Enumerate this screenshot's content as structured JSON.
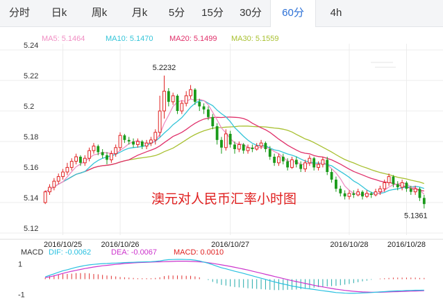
{
  "tabs": [
    {
      "label": "分时",
      "active": false
    },
    {
      "label": "日k",
      "active": false
    },
    {
      "label": "周k",
      "active": false
    },
    {
      "label": "月k",
      "active": false
    },
    {
      "label": "5分",
      "active": false
    },
    {
      "label": "15分",
      "active": false
    },
    {
      "label": "30分",
      "active": false
    },
    {
      "label": "60分",
      "active": true
    },
    {
      "label": "4h",
      "active": false
    }
  ],
  "colors": {
    "up": "#e02020",
    "down": "#1a9a1a",
    "ma5": "#f08ec3",
    "ma10": "#33c4d8",
    "ma20": "#e0306a",
    "ma30": "#a8c030",
    "dif": "#27c0e0",
    "dea": "#cc33cc",
    "macd_pos": "#e03030",
    "macd_neg": "#22aaaa",
    "overlay": "#e02020"
  },
  "legend": {
    "ma5": "MA5: 5.1464",
    "ma10": "MA10: 5.1470",
    "ma20": "MA20: 5.1499",
    "ma30": "MA30: 5.1559"
  },
  "overlay_text": "澳元对人民币汇率小时图",
  "annotations": {
    "high": "5.2232",
    "low": "5.1361"
  },
  "macd_legend": {
    "label": "MACD",
    "dif": "DIF: -0.0062",
    "dea": "DEA: -0.0067",
    "macd": "MACD: 0.0010"
  },
  "chart_data": {
    "type": "candlestick",
    "y_ticks": [
      "5.24",
      "5.22",
      "5.2",
      "5.18",
      "5.16",
      "5.14",
      "5.12"
    ],
    "ylim": [
      5.12,
      5.24
    ],
    "date_labels": [
      {
        "index": 4,
        "label": "2016/10/25"
      },
      {
        "index": 17,
        "label": "2016/10/26"
      },
      {
        "index": 42,
        "label": "2016/10/27"
      },
      {
        "index": 69,
        "label": "2016/10/28"
      },
      {
        "index": 82,
        "label": "2016/10/28"
      }
    ],
    "high_index": 27,
    "low_index": 86,
    "candles": [
      [
        5.14,
        5.147,
        5.148,
        5.139
      ],
      [
        5.147,
        5.15,
        5.152,
        5.145
      ],
      [
        5.15,
        5.154,
        5.156,
        5.148
      ],
      [
        5.154,
        5.157,
        5.159,
        5.152
      ],
      [
        5.157,
        5.16,
        5.162,
        5.155
      ],
      [
        5.16,
        5.163,
        5.166,
        5.158
      ],
      [
        5.163,
        5.167,
        5.169,
        5.161
      ],
      [
        5.167,
        5.17,
        5.172,
        5.165
      ],
      [
        5.17,
        5.166,
        5.171,
        5.164
      ],
      [
        5.166,
        5.169,
        5.171,
        5.164
      ],
      [
        5.169,
        5.174,
        5.176,
        5.167
      ],
      [
        5.174,
        5.177,
        5.179,
        5.172
      ],
      [
        5.177,
        5.173,
        5.178,
        5.171
      ],
      [
        5.173,
        5.171,
        5.175,
        5.169
      ],
      [
        5.171,
        5.168,
        5.173,
        5.165
      ],
      [
        5.168,
        5.172,
        5.174,
        5.166
      ],
      [
        5.172,
        5.176,
        5.178,
        5.17
      ],
      [
        5.176,
        5.184,
        5.186,
        5.174
      ],
      [
        5.184,
        5.181,
        5.185,
        5.179
      ],
      [
        5.181,
        5.18,
        5.183,
        5.178
      ],
      [
        5.18,
        5.178,
        5.182,
        5.176
      ],
      [
        5.178,
        5.18,
        5.182,
        5.176
      ],
      [
        5.18,
        5.177,
        5.181,
        5.175
      ],
      [
        5.177,
        5.179,
        5.181,
        5.175
      ],
      [
        5.179,
        5.181,
        5.183,
        5.177
      ],
      [
        5.181,
        5.186,
        5.188,
        5.178
      ],
      [
        5.186,
        5.2,
        5.21,
        5.183
      ],
      [
        5.2,
        5.213,
        5.2232,
        5.195
      ],
      [
        5.213,
        5.206,
        5.215,
        5.203
      ],
      [
        5.206,
        5.21,
        5.212,
        5.204
      ],
      [
        5.21,
        5.2,
        5.211,
        5.198
      ],
      [
        5.2,
        5.205,
        5.207,
        5.198
      ],
      [
        5.205,
        5.21,
        5.213,
        5.203
      ],
      [
        5.21,
        5.214,
        5.217,
        5.208
      ],
      [
        5.214,
        5.206,
        5.215,
        5.204
      ],
      [
        5.206,
        5.203,
        5.208,
        5.2
      ],
      [
        5.203,
        5.201,
        5.205,
        5.198
      ],
      [
        5.201,
        5.196,
        5.203,
        5.194
      ],
      [
        5.196,
        5.19,
        5.198,
        5.188
      ],
      [
        5.19,
        5.181,
        5.192,
        5.178
      ],
      [
        5.181,
        5.176,
        5.183,
        5.172
      ],
      [
        5.176,
        5.185,
        5.188,
        5.174
      ],
      [
        5.185,
        5.178,
        5.187,
        5.176
      ],
      [
        5.178,
        5.175,
        5.18,
        5.172
      ],
      [
        5.175,
        5.178,
        5.18,
        5.173
      ],
      [
        5.178,
        5.174,
        5.179,
        5.172
      ],
      [
        5.174,
        5.176,
        5.178,
        5.172
      ],
      [
        5.176,
        5.175,
        5.178,
        5.173
      ],
      [
        5.175,
        5.177,
        5.179,
        5.174
      ],
      [
        5.177,
        5.179,
        5.181,
        5.175
      ],
      [
        5.179,
        5.175,
        5.18,
        5.173
      ],
      [
        5.175,
        5.17,
        5.177,
        5.168
      ],
      [
        5.17,
        5.166,
        5.172,
        5.164
      ],
      [
        5.166,
        5.17,
        5.172,
        5.164
      ],
      [
        5.17,
        5.167,
        5.172,
        5.165
      ],
      [
        5.167,
        5.163,
        5.169,
        5.161
      ],
      [
        5.163,
        5.168,
        5.17,
        5.162
      ],
      [
        5.168,
        5.165,
        5.17,
        5.163
      ],
      [
        5.165,
        5.162,
        5.167,
        5.16
      ],
      [
        5.162,
        5.166,
        5.168,
        5.16
      ],
      [
        5.166,
        5.169,
        5.171,
        5.164
      ],
      [
        5.169,
        5.163,
        5.17,
        5.161
      ],
      [
        5.163,
        5.165,
        5.167,
        5.161
      ],
      [
        5.165,
        5.168,
        5.17,
        5.163
      ],
      [
        5.168,
        5.16,
        5.17,
        5.158
      ],
      [
        5.16,
        5.155,
        5.162,
        5.153
      ],
      [
        5.155,
        5.149,
        5.157,
        5.147
      ],
      [
        5.149,
        5.146,
        5.151,
        5.144
      ],
      [
        5.146,
        5.144,
        5.148,
        5.142
      ],
      [
        5.144,
        5.146,
        5.148,
        5.142
      ],
      [
        5.146,
        5.145,
        5.148,
        5.143
      ],
      [
        5.145,
        5.147,
        5.149,
        5.144
      ],
      [
        5.147,
        5.144,
        5.148,
        5.142
      ],
      [
        5.144,
        5.146,
        5.148,
        5.143
      ],
      [
        5.146,
        5.145,
        5.147,
        5.143
      ],
      [
        5.145,
        5.147,
        5.149,
        5.144
      ],
      [
        5.147,
        5.149,
        5.151,
        5.145
      ],
      [
        5.149,
        5.153,
        5.155,
        5.147
      ],
      [
        5.153,
        5.157,
        5.159,
        5.151
      ],
      [
        5.157,
        5.152,
        5.158,
        5.15
      ],
      [
        5.152,
        5.15,
        5.154,
        5.148
      ],
      [
        5.15,
        5.153,
        5.155,
        5.148
      ],
      [
        5.153,
        5.149,
        5.154,
        5.147
      ],
      [
        5.149,
        5.147,
        5.151,
        5.145
      ],
      [
        5.147,
        5.149,
        5.151,
        5.145
      ],
      [
        5.149,
        5.143,
        5.15,
        5.141
      ],
      [
        5.143,
        5.139,
        5.145,
        5.1361
      ]
    ],
    "macd": {
      "ylim": [
        -1.3,
        1.3
      ],
      "y_ticks": [
        "1",
        "-1"
      ],
      "dif": [
        0.15,
        0.25,
        0.35,
        0.45,
        0.55,
        0.62,
        0.7,
        0.78,
        0.84,
        0.9,
        0.94,
        0.97,
        1.0,
        1.02,
        1.03,
        1.05,
        1.06,
        1.07,
        1.09,
        1.1,
        1.11,
        1.12,
        1.13,
        1.14,
        1.15,
        1.17,
        1.2,
        1.25,
        1.28,
        1.29,
        1.3,
        1.3,
        1.29,
        1.28,
        1.25,
        1.2,
        1.12,
        1.05,
        0.95,
        0.85,
        0.75,
        0.68,
        0.6,
        0.52,
        0.45,
        0.38,
        0.3,
        0.22,
        0.14,
        0.06,
        -0.02,
        -0.1,
        -0.18,
        -0.25,
        -0.32,
        -0.38,
        -0.45,
        -0.5,
        -0.55,
        -0.6,
        -0.64,
        -0.68,
        -0.72,
        -0.76,
        -0.8,
        -0.84,
        -0.88,
        -0.9,
        -0.92,
        -0.93,
        -0.93,
        -0.92,
        -0.91,
        -0.9,
        -0.88,
        -0.86,
        -0.84,
        -0.82,
        -0.8,
        -0.78,
        -0.77,
        -0.76,
        -0.75,
        -0.74,
        -0.73,
        -0.73,
        -0.72
      ],
      "dea": [
        0.1,
        0.15,
        0.22,
        0.3,
        0.38,
        0.45,
        0.52,
        0.58,
        0.64,
        0.7,
        0.75,
        0.8,
        0.84,
        0.88,
        0.91,
        0.94,
        0.97,
        1.0,
        1.03,
        1.05,
        1.07,
        1.09,
        1.1,
        1.11,
        1.12,
        1.13,
        1.14,
        1.15,
        1.16,
        1.17,
        1.18,
        1.18,
        1.18,
        1.17,
        1.16,
        1.14,
        1.12,
        1.08,
        1.04,
        0.99,
        0.94,
        0.89,
        0.84,
        0.78,
        0.72,
        0.66,
        0.6,
        0.53,
        0.46,
        0.39,
        0.32,
        0.25,
        0.18,
        0.11,
        0.04,
        -0.03,
        -0.1,
        -0.16,
        -0.22,
        -0.28,
        -0.34,
        -0.4,
        -0.46,
        -0.51,
        -0.56,
        -0.61,
        -0.66,
        -0.7,
        -0.74,
        -0.77,
        -0.8,
        -0.82,
        -0.84,
        -0.85,
        -0.86,
        -0.86,
        -0.86,
        -0.85,
        -0.84,
        -0.83,
        -0.82,
        -0.81,
        -0.8,
        -0.79,
        -0.78,
        -0.77,
        -0.76
      ],
      "macd": [
        0.1,
        0.2,
        0.26,
        0.3,
        0.34,
        0.34,
        0.36,
        0.4,
        0.4,
        0.4,
        0.38,
        0.34,
        0.32,
        0.28,
        0.24,
        0.22,
        0.18,
        0.14,
        0.12,
        0.1,
        0.08,
        0.06,
        0.06,
        0.06,
        0.06,
        0.08,
        0.12,
        0.2,
        0.24,
        0.24,
        0.24,
        0.24,
        0.22,
        0.22,
        0.18,
        0.12,
        0.0,
        -0.06,
        -0.18,
        -0.28,
        -0.38,
        -0.42,
        -0.48,
        -0.52,
        -0.54,
        -0.56,
        -0.6,
        -0.62,
        -0.64,
        -0.66,
        -0.68,
        -0.7,
        -0.72,
        -0.72,
        -0.72,
        -0.7,
        -0.7,
        -0.68,
        -0.66,
        -0.64,
        -0.6,
        -0.56,
        -0.52,
        -0.5,
        -0.48,
        -0.46,
        -0.44,
        -0.4,
        -0.36,
        -0.32,
        -0.26,
        -0.2,
        -0.14,
        -0.1,
        -0.04,
        0.0,
        0.04,
        0.06,
        0.08,
        0.1,
        0.1,
        0.1,
        0.1,
        0.1,
        0.1,
        0.08,
        0.08
      ]
    }
  }
}
